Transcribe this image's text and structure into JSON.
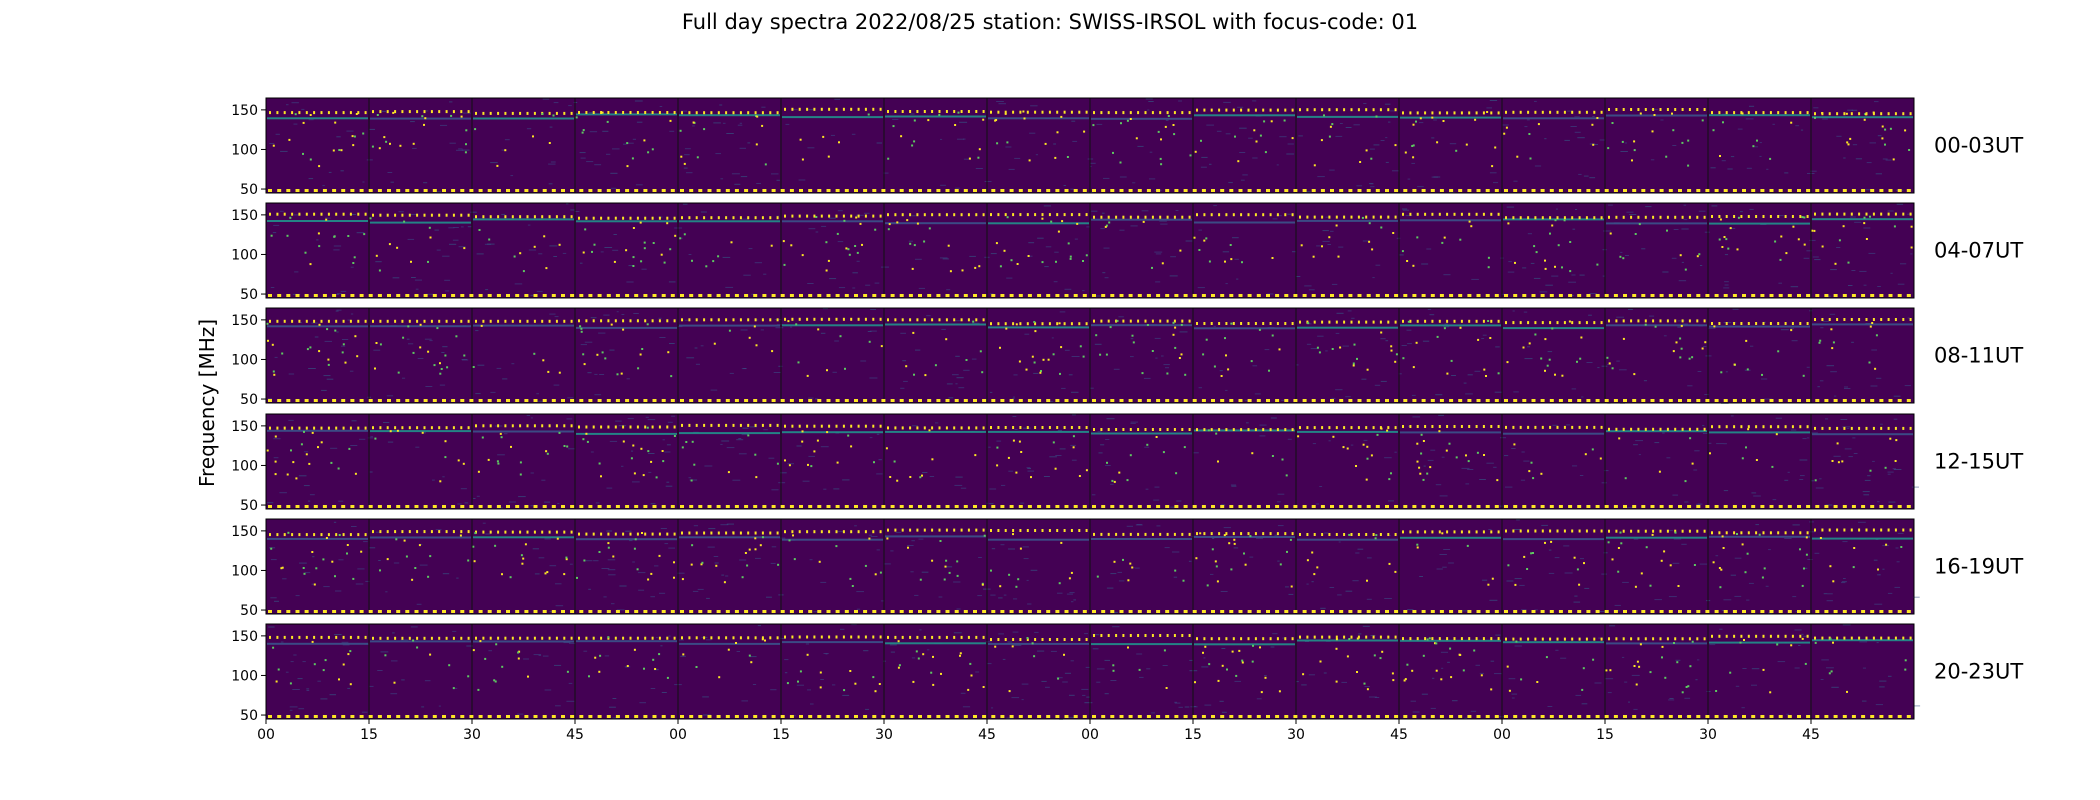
{
  "chart_data": {
    "type": "heatmap",
    "title": "Full day spectra 2022/08/25 station: SWISS-IRSOL with focus-code: 01",
    "ylabel": "Frequency [MHz]",
    "xlabel": "",
    "ylim": [
      45,
      165
    ],
    "y_ticks": [
      50,
      100,
      150
    ],
    "x_ticks": [
      "00",
      "15",
      "30",
      "45",
      "00",
      "15",
      "30",
      "45",
      "00",
      "15",
      "30",
      "45",
      "00",
      "15",
      "30",
      "45"
    ],
    "panels": [
      "00-03UT",
      "04-07UT",
      "08-11UT",
      "12-15UT",
      "16-19UT",
      "20-23UT"
    ],
    "segments_per_panel": 16,
    "minutes_per_segment": 15,
    "colormap": [
      "#440154",
      "#3b528b",
      "#21918c",
      "#5ec962",
      "#fde725"
    ],
    "grid": false
  }
}
